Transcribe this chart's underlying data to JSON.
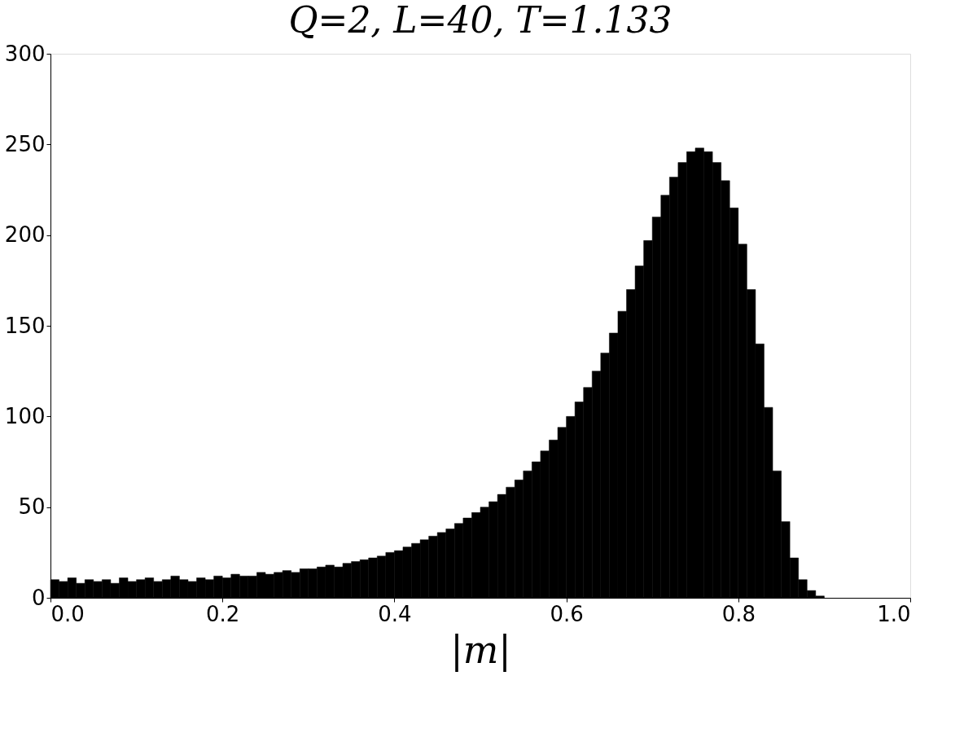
{
  "chart_data": {
    "type": "histogram",
    "title": "Q=2, L=40, T=1.133",
    "xlabel": "|m|",
    "bins": [
      0,
      0.01,
      0.02,
      0.03,
      0.04,
      0.05,
      0.06,
      0.07,
      0.08,
      0.09,
      0.1,
      0.11,
      0.12,
      0.13,
      0.14,
      0.15,
      0.16,
      0.17,
      0.18,
      0.19,
      0.2,
      0.21,
      0.22,
      0.23,
      0.24,
      0.25,
      0.26,
      0.27,
      0.28,
      0.29,
      0.3,
      0.31,
      0.32,
      0.33,
      0.34,
      0.35,
      0.36,
      0.37,
      0.38,
      0.39,
      0.4,
      0.41,
      0.42,
      0.43,
      0.44,
      0.45,
      0.46,
      0.47,
      0.48,
      0.49,
      0.5,
      0.51,
      0.52,
      0.53,
      0.54,
      0.55,
      0.56,
      0.57,
      0.58,
      0.59,
      0.6,
      0.61,
      0.62,
      0.63,
      0.64,
      0.65,
      0.66,
      0.67,
      0.68,
      0.69,
      0.7,
      0.71,
      0.72,
      0.73,
      0.74,
      0.75,
      0.76,
      0.77,
      0.78,
      0.79,
      0.8,
      0.81,
      0.82,
      0.83,
      0.84,
      0.85,
      0.86,
      0.87,
      0.88,
      0.89,
      0.9
    ],
    "values": [
      10,
      9,
      11,
      8,
      10,
      9,
      10,
      8,
      11,
      9,
      10,
      11,
      9,
      10,
      12,
      10,
      9,
      11,
      10,
      12,
      11,
      13,
      12,
      12,
      14,
      13,
      14,
      15,
      14,
      16,
      16,
      17,
      18,
      17,
      19,
      20,
      21,
      22,
      23,
      25,
      26,
      28,
      30,
      32,
      34,
      36,
      38,
      41,
      44,
      47,
      50,
      53,
      57,
      61,
      65,
      70,
      75,
      81,
      87,
      94,
      100,
      108,
      116,
      125,
      135,
      146,
      158,
      170,
      183,
      197,
      210,
      222,
      232,
      240,
      246,
      248,
      246,
      240,
      230,
      215,
      195,
      170,
      140,
      105,
      70,
      42,
      22,
      10,
      4,
      1
    ],
    "color": "#000000",
    "xlim": [
      0,
      1
    ],
    "xticks": [
      {
        "value": 0,
        "label": "0.0"
      },
      {
        "value": 0.2,
        "label": "0.2"
      },
      {
        "value": 0.4,
        "label": "0.4"
      },
      {
        "value": 0.6,
        "label": "0.6"
      },
      {
        "value": 0.8,
        "label": "0.8"
      },
      {
        "value": 1,
        "label": "1.0"
      }
    ],
    "ylim": [
      0,
      300
    ],
    "yticks": [
      0,
      50,
      100,
      150,
      200,
      250,
      300
    ],
    "grid": false
  }
}
